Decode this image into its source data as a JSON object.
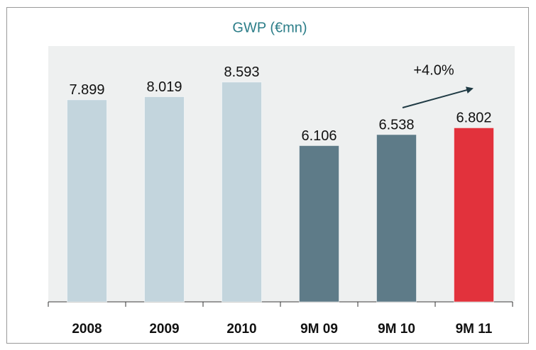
{
  "chart_data": {
    "type": "bar",
    "title": "GWP (€mn)",
    "categories": [
      "2008",
      "2009",
      "2010",
      "9M 09",
      "9M 10",
      "9M 11"
    ],
    "values": [
      7899,
      8019,
      8593,
      6106,
      6538,
      6802
    ],
    "value_labels": [
      "7.899",
      "8.019",
      "8.593",
      "6.106",
      "6.538",
      "6.802"
    ],
    "colors": [
      "#c3d5dd",
      "#c3d5dd",
      "#c3d5dd",
      "#5e7b88",
      "#5e7b88",
      "#e2323c"
    ],
    "ylim": [
      0,
      10000
    ],
    "annotation": "+4.0%"
  }
}
